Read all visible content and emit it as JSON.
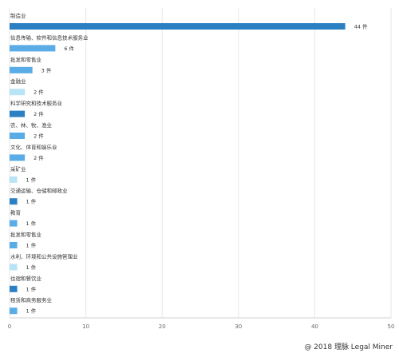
{
  "chart_data": {
    "type": "bar",
    "orientation": "horizontal",
    "categories": [
      "制造业",
      "信息传输、软件和信息技术服务业",
      "批发和零售业",
      "金融业",
      "科学研究和技术服务业",
      "农、林、牧、渔业",
      "文化、体育和娱乐业",
      "采矿业",
      "交通运输、仓储和邮政业",
      "教育",
      "批发和零售业",
      "水利、环境和公共设施管理业",
      "住宿和餐饮业",
      "租赁和商务服务业"
    ],
    "values": [
      44,
      6,
      3,
      2,
      2,
      2,
      2,
      1,
      1,
      1,
      1,
      1,
      1,
      1
    ],
    "value_unit": "件",
    "bar_colors": [
      "#2b7fc3",
      "#5aace6",
      "#5aace6",
      "#b9e3f7",
      "#2b7fc3",
      "#5aace6",
      "#5aace6",
      "#b9e3f7",
      "#2b7fc3",
      "#5aace6",
      "#5aace6",
      "#b9e3f7",
      "#2b7fc3",
      "#5aace6"
    ],
    "xlim": [
      0,
      50
    ],
    "xticks": [
      0,
      10,
      20,
      30,
      40,
      50
    ],
    "grid": true,
    "title": "",
    "xlabel": "",
    "ylabel": ""
  },
  "footer": {
    "credit": "@ 2018 理脉 Legal Miner"
  }
}
